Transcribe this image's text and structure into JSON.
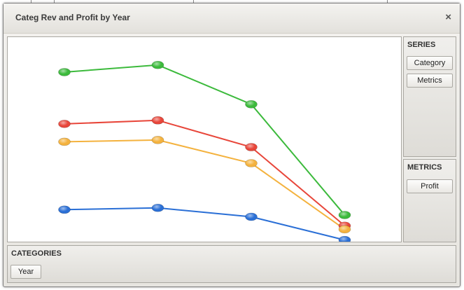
{
  "window": {
    "title": "Categ Rev and Profit by Year",
    "close_glyph": "×"
  },
  "series_panel": {
    "title": "SERIES",
    "items": [
      "Category",
      "Metrics"
    ]
  },
  "metrics_panel": {
    "title": "METRICS",
    "items": [
      "Profit"
    ]
  },
  "categories_panel": {
    "title": "CATEGORIES",
    "items": [
      "Year"
    ]
  },
  "chart_data": {
    "type": "line",
    "categories": [
      "",
      "",
      "",
      ""
    ],
    "title": "",
    "xlabel": "",
    "ylabel": "",
    "ylim": [
      0,
      100
    ],
    "grid": false,
    "series": [
      {
        "color": "#3cba3c",
        "values": [
          91,
          95,
          73,
          11
        ]
      },
      {
        "color": "#e8463a",
        "values": [
          62,
          64,
          49,
          5
        ]
      },
      {
        "color": "#f4b23e",
        "values": [
          52,
          53,
          40,
          3
        ]
      },
      {
        "color": "#2a6fd6",
        "values": [
          14,
          15,
          10,
          -3
        ]
      }
    ]
  }
}
